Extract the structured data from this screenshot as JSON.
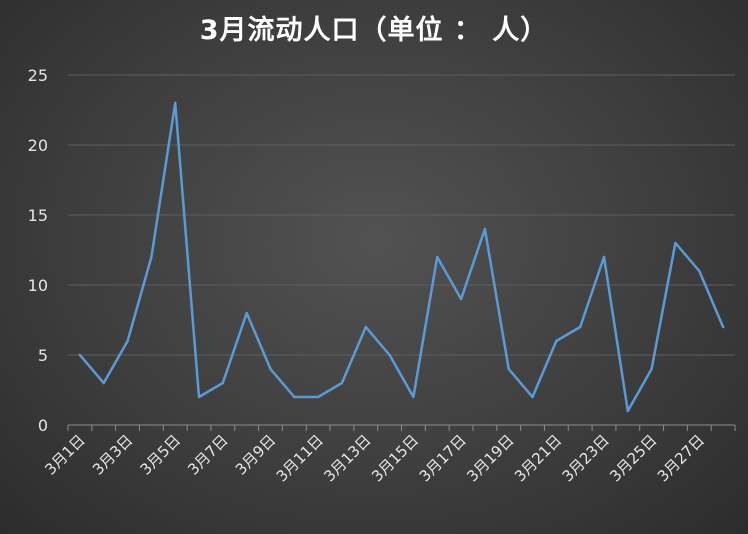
{
  "chart_data": {
    "type": "line",
    "title": "3月流动人口（单位 ： 人）",
    "xlabel": "",
    "ylabel": "",
    "ylim": [
      0,
      25
    ],
    "yticks": [
      0,
      5,
      10,
      15,
      20,
      25
    ],
    "grid": true,
    "legend": "none",
    "line_color": "#5b9bd5",
    "grid_color": "#5e5e5e",
    "categories": [
      "3月1日",
      "3月2日",
      "3月3日",
      "3月4日",
      "3月5日",
      "3月6日",
      "3月7日",
      "3月8日",
      "3月9日",
      "3月10日",
      "3月11日",
      "3月12日",
      "3月13日",
      "3月14日",
      "3月15日",
      "3月16日",
      "3月17日",
      "3月18日",
      "3月19日",
      "3月20日",
      "3月21日",
      "3月22日",
      "3月23日",
      "3月24日",
      "3月25日",
      "3月26日",
      "3月27日",
      "3月28日"
    ],
    "tick_labels_shown": [
      "3月1日",
      "3月3日",
      "3月5日",
      "3月7日",
      "3月9日",
      "3月11日",
      "3月13日",
      "3月15日",
      "3月17日",
      "3月19日",
      "3月21日",
      "3月23日",
      "3月25日",
      "3月27日"
    ],
    "values": [
      5,
      3,
      6,
      12,
      23,
      2,
      3,
      8,
      4,
      2,
      2,
      3,
      7,
      5,
      2,
      12,
      9,
      14,
      4,
      2,
      6,
      7,
      12,
      1,
      4,
      13,
      11,
      7
    ]
  }
}
